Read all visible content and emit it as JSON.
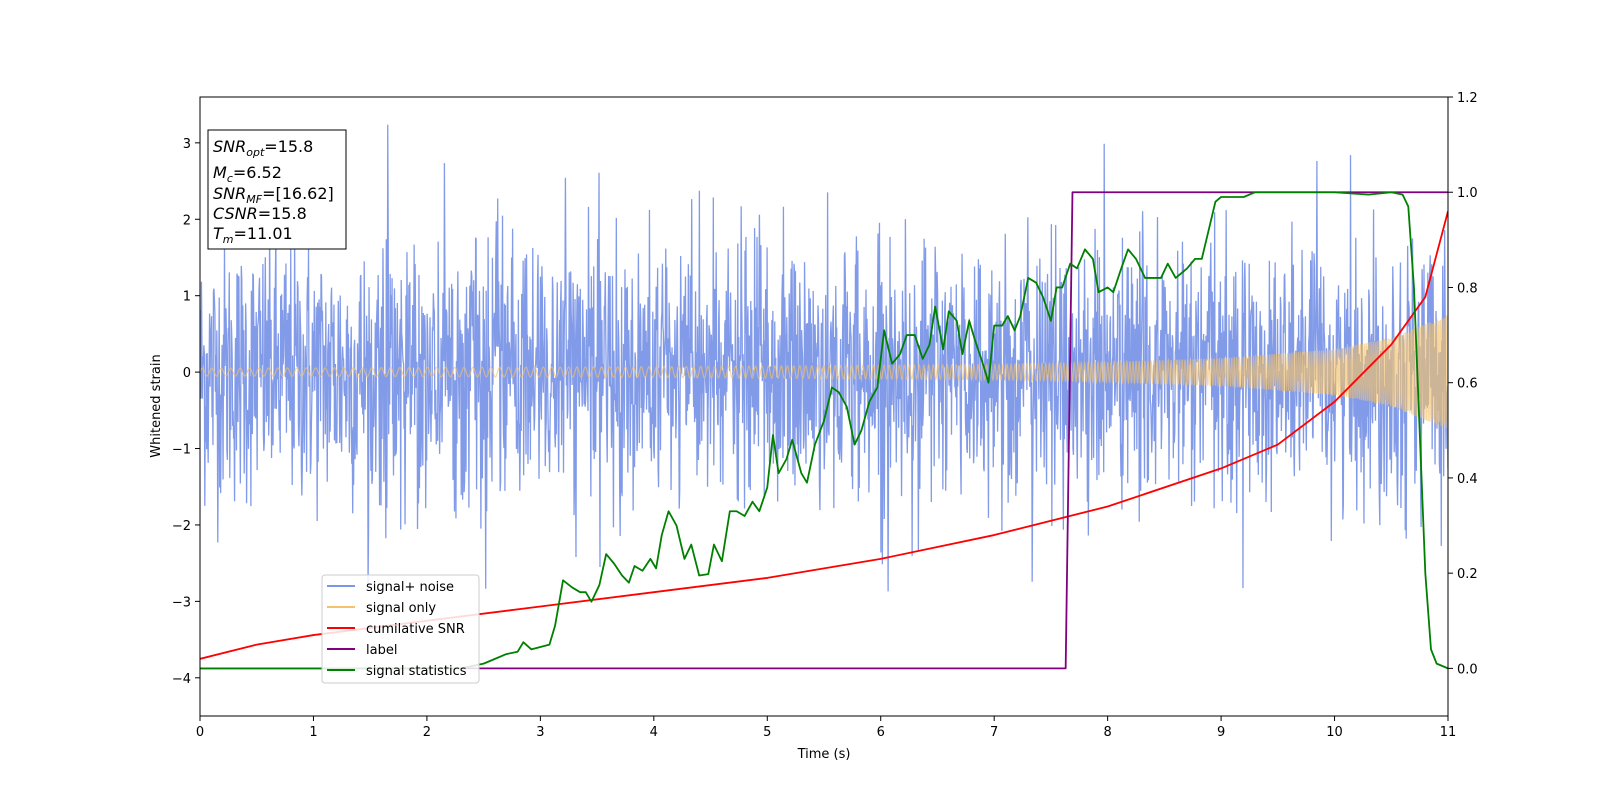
{
  "chart_data": {
    "type": "line",
    "xlabel": "Time (s)",
    "ylabel": "Whitened strain",
    "xlim": [
      0,
      11
    ],
    "ylim_left": [
      -4.5,
      3.6
    ],
    "ylim_right": [
      -0.1,
      1.2
    ],
    "x_ticks": [
      0,
      1,
      2,
      3,
      4,
      5,
      6,
      7,
      8,
      9,
      10,
      11
    ],
    "y_ticks_left": [
      -4,
      -3,
      -2,
      -1,
      0,
      1,
      2,
      3
    ],
    "y_ticks_right": [
      0.0,
      0.2,
      0.4,
      0.6,
      0.8,
      1.0,
      1.2
    ],
    "grid": false,
    "legend_position": "lower-left",
    "info_box": {
      "snr_opt": {
        "base": "SNR",
        "sub": "opt",
        "value": "=15.8"
      },
      "mc": {
        "base": "M",
        "sub": "c",
        "value": "=6.52"
      },
      "snr_mf": {
        "base": "SNR",
        "sub": "MF",
        "value": "=[16.62]"
      },
      "csnr": {
        "base": "CSNR",
        "sub": "",
        "value": "=15.8"
      },
      "tm": {
        "base": "T",
        "sub": "m",
        "value": "=11.01"
      }
    },
    "series": [
      {
        "name": "signal+ noise",
        "axis": "left",
        "color": "#7b96e8",
        "kind": "noise_band",
        "sigma": 0.85,
        "extremes": {
          "max": 3.25,
          "min": -2.95
        }
      },
      {
        "name": "signal only",
        "axis": "left",
        "color": "#f5c26b",
        "kind": "chirp_envelope",
        "amplitude_points": [
          [
            0,
            0.05
          ],
          [
            2,
            0.06
          ],
          [
            4,
            0.07
          ],
          [
            6,
            0.09
          ],
          [
            7,
            0.1
          ],
          [
            8,
            0.13
          ],
          [
            9,
            0.18
          ],
          [
            10,
            0.3
          ],
          [
            10.5,
            0.45
          ],
          [
            11,
            0.75
          ]
        ]
      },
      {
        "name": "cumilative SNR",
        "axis": "right",
        "color": "#ff0000",
        "points": [
          [
            0,
            0.02
          ],
          [
            0.5,
            0.05
          ],
          [
            1,
            0.07
          ],
          [
            2,
            0.1
          ],
          [
            3,
            0.13
          ],
          [
            4,
            0.16
          ],
          [
            5,
            0.19
          ],
          [
            6,
            0.23
          ],
          [
            7,
            0.28
          ],
          [
            8,
            0.34
          ],
          [
            9,
            0.42
          ],
          [
            9.5,
            0.47
          ],
          [
            10,
            0.56
          ],
          [
            10.5,
            0.68
          ],
          [
            10.8,
            0.78
          ],
          [
            11,
            0.96
          ]
        ]
      },
      {
        "name": "label",
        "axis": "right",
        "color": "#800080",
        "points": [
          [
            0,
            0.0
          ],
          [
            7.63,
            0.0
          ],
          [
            7.69,
            1.0
          ],
          [
            11,
            1.0
          ]
        ]
      },
      {
        "name": "signal statistics",
        "axis": "right",
        "color": "#008000",
        "points": [
          [
            0,
            0.0
          ],
          [
            2.3,
            0.0
          ],
          [
            2.5,
            0.01
          ],
          [
            2.6,
            0.02
          ],
          [
            2.7,
            0.03
          ],
          [
            2.8,
            0.035
          ],
          [
            2.85,
            0.055
          ],
          [
            2.92,
            0.04
          ],
          [
            3.0,
            0.045
          ],
          [
            3.08,
            0.05
          ],
          [
            3.13,
            0.09
          ],
          [
            3.2,
            0.185
          ],
          [
            3.28,
            0.17
          ],
          [
            3.35,
            0.16
          ],
          [
            3.4,
            0.16
          ],
          [
            3.45,
            0.14
          ],
          [
            3.52,
            0.175
          ],
          [
            3.58,
            0.24
          ],
          [
            3.65,
            0.22
          ],
          [
            3.72,
            0.195
          ],
          [
            3.78,
            0.18
          ],
          [
            3.83,
            0.215
          ],
          [
            3.9,
            0.205
          ],
          [
            3.97,
            0.23
          ],
          [
            4.02,
            0.21
          ],
          [
            4.07,
            0.28
          ],
          [
            4.13,
            0.33
          ],
          [
            4.2,
            0.3
          ],
          [
            4.27,
            0.23
          ],
          [
            4.33,
            0.26
          ],
          [
            4.4,
            0.195
          ],
          [
            4.48,
            0.198
          ],
          [
            4.53,
            0.26
          ],
          [
            4.6,
            0.225
          ],
          [
            4.67,
            0.33
          ],
          [
            4.73,
            0.33
          ],
          [
            4.8,
            0.32
          ],
          [
            4.87,
            0.35
          ],
          [
            4.93,
            0.33
          ],
          [
            5.0,
            0.38
          ],
          [
            5.05,
            0.49
          ],
          [
            5.1,
            0.41
          ],
          [
            5.17,
            0.44
          ],
          [
            5.22,
            0.48
          ],
          [
            5.3,
            0.41
          ],
          [
            5.35,
            0.39
          ],
          [
            5.42,
            0.47
          ],
          [
            5.5,
            0.52
          ],
          [
            5.57,
            0.59
          ],
          [
            5.63,
            0.58
          ],
          [
            5.7,
            0.55
          ],
          [
            5.77,
            0.47
          ],
          [
            5.83,
            0.5
          ],
          [
            5.9,
            0.56
          ],
          [
            5.97,
            0.59
          ],
          [
            6.03,
            0.71
          ],
          [
            6.1,
            0.64
          ],
          [
            6.17,
            0.66
          ],
          [
            6.23,
            0.7
          ],
          [
            6.3,
            0.7
          ],
          [
            6.37,
            0.65
          ],
          [
            6.43,
            0.68
          ],
          [
            6.48,
            0.76
          ],
          [
            6.55,
            0.67
          ],
          [
            6.6,
            0.75
          ],
          [
            6.67,
            0.73
          ],
          [
            6.72,
            0.66
          ],
          [
            6.78,
            0.73
          ],
          [
            6.83,
            0.69
          ],
          [
            6.9,
            0.64
          ],
          [
            6.95,
            0.6
          ],
          [
            7.0,
            0.72
          ],
          [
            7.07,
            0.72
          ],
          [
            7.12,
            0.74
          ],
          [
            7.18,
            0.71
          ],
          [
            7.23,
            0.74
          ],
          [
            7.3,
            0.82
          ],
          [
            7.37,
            0.81
          ],
          [
            7.43,
            0.78
          ],
          [
            7.5,
            0.73
          ],
          [
            7.55,
            0.8
          ],
          [
            7.6,
            0.8
          ],
          [
            7.67,
            0.85
          ],
          [
            7.73,
            0.84
          ],
          [
            7.8,
            0.88
          ],
          [
            7.87,
            0.86
          ],
          [
            7.92,
            0.79
          ],
          [
            8.0,
            0.8
          ],
          [
            8.05,
            0.79
          ],
          [
            8.12,
            0.84
          ],
          [
            8.18,
            0.88
          ],
          [
            8.25,
            0.86
          ],
          [
            8.33,
            0.82
          ],
          [
            8.4,
            0.82
          ],
          [
            8.47,
            0.82
          ],
          [
            8.53,
            0.85
          ],
          [
            8.6,
            0.82
          ],
          [
            8.7,
            0.84
          ],
          [
            8.77,
            0.86
          ],
          [
            8.83,
            0.86
          ],
          [
            8.9,
            0.93
          ],
          [
            8.95,
            0.98
          ],
          [
            9.0,
            0.99
          ],
          [
            9.1,
            0.99
          ],
          [
            9.2,
            0.99
          ],
          [
            9.3,
            1.0
          ],
          [
            9.6,
            1.0
          ],
          [
            10.0,
            1.0
          ],
          [
            10.3,
            0.995
          ],
          [
            10.5,
            1.0
          ],
          [
            10.6,
            0.995
          ],
          [
            10.65,
            0.97
          ],
          [
            10.7,
            0.8
          ],
          [
            10.75,
            0.5
          ],
          [
            10.8,
            0.2
          ],
          [
            10.85,
            0.04
          ],
          [
            10.9,
            0.01
          ],
          [
            11.0,
            0.0
          ]
        ]
      }
    ]
  }
}
